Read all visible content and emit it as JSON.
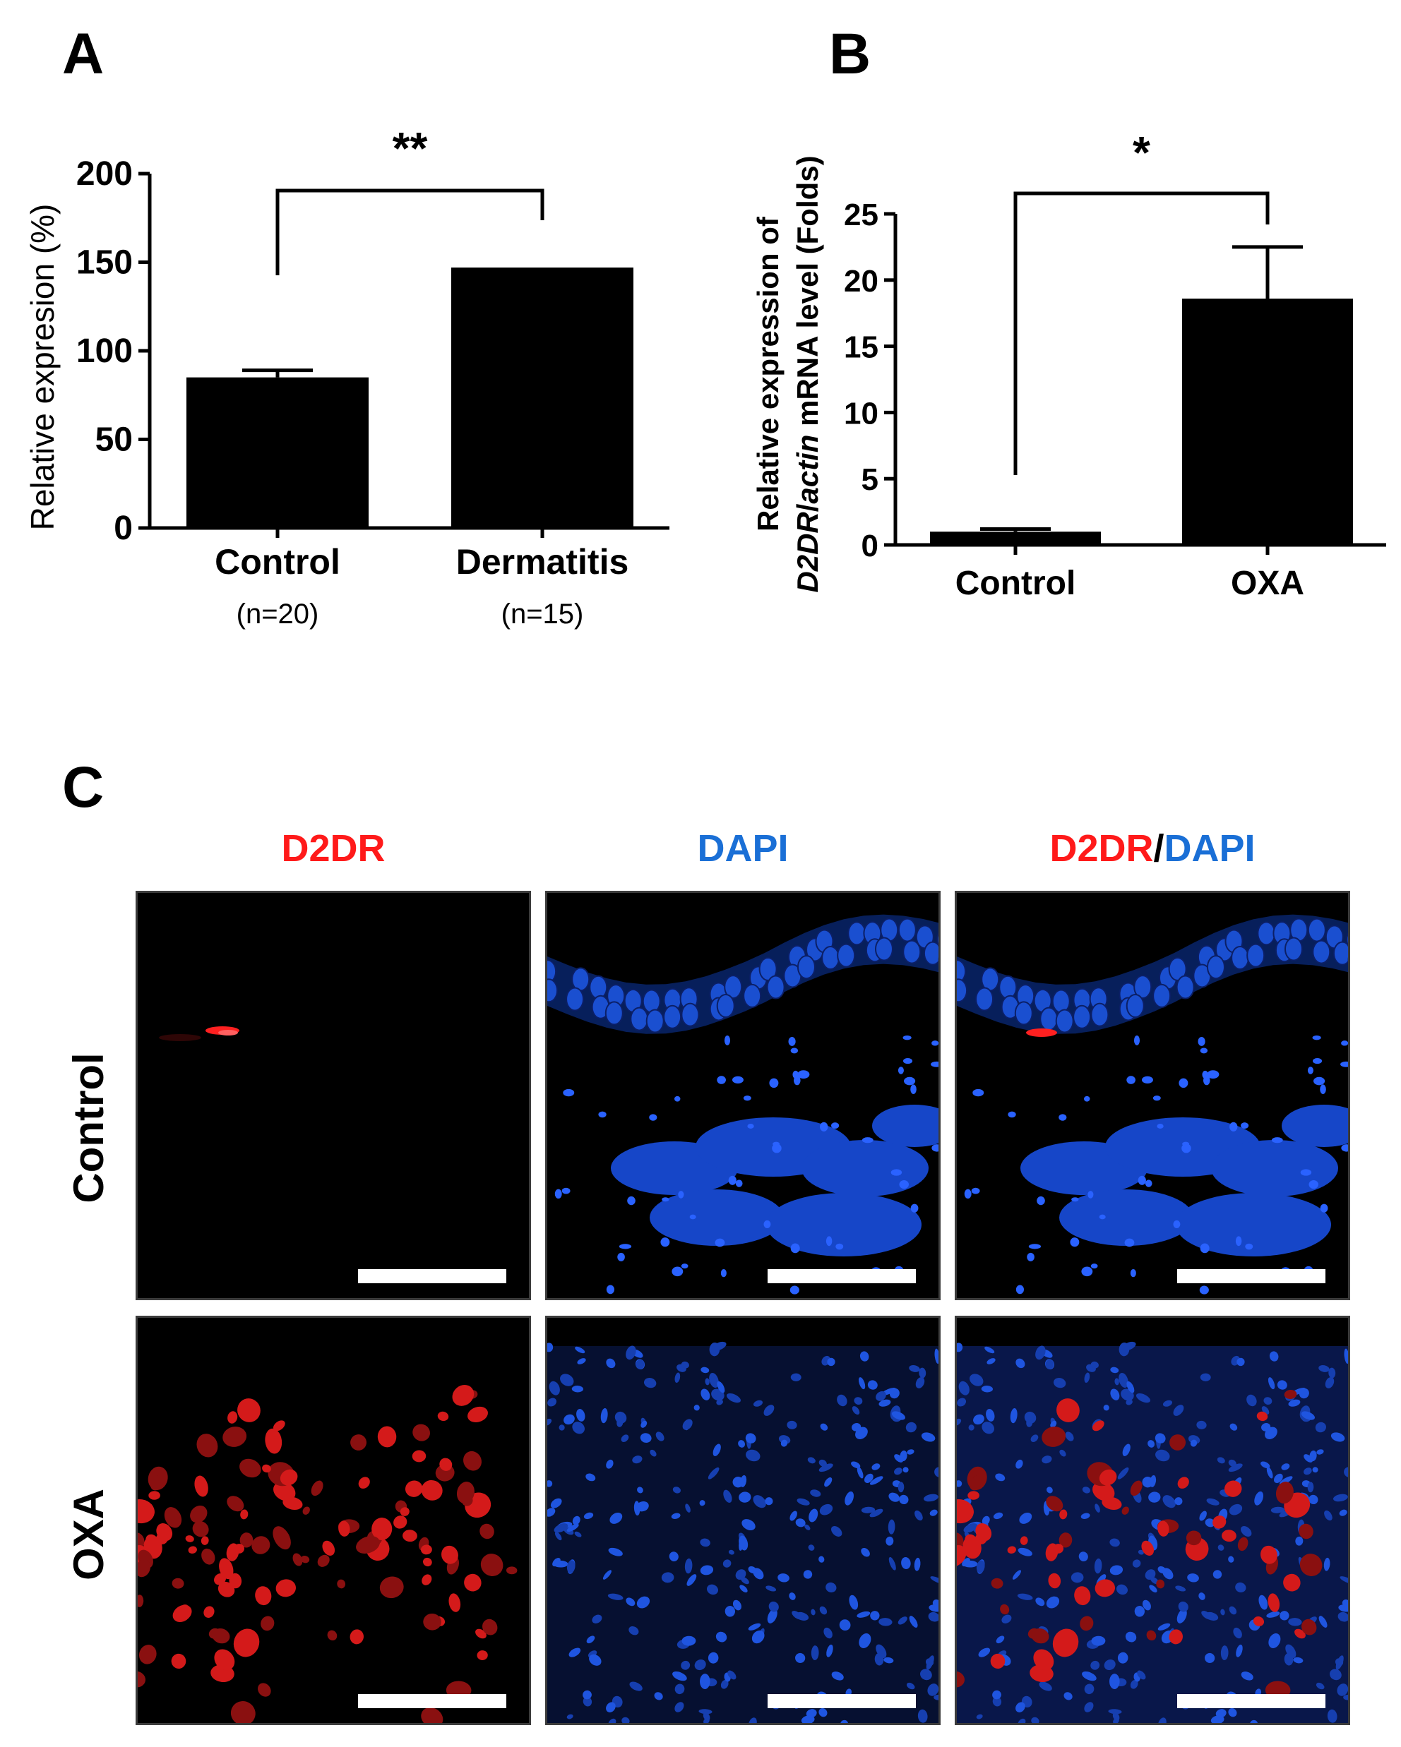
{
  "panels": {
    "a": {
      "letter": "A"
    },
    "b": {
      "letter": "B"
    },
    "c": {
      "letter": "C"
    }
  },
  "chart_data": [
    {
      "panel": "A",
      "type": "bar",
      "categories": [
        "Control",
        "Dermatitis"
      ],
      "sublabels": [
        "(n=20)",
        "(n=15)"
      ],
      "values": [
        85,
        147
      ],
      "errors": [
        4,
        0
      ],
      "ylabel": "Relative expresion (%)",
      "ylim": [
        0,
        200
      ],
      "yticks": [
        0,
        50,
        100,
        150,
        200
      ],
      "significance": "**",
      "bar_color": "#000000"
    },
    {
      "panel": "B",
      "type": "bar",
      "categories": [
        "Control",
        "OXA"
      ],
      "values": [
        1.0,
        18.6
      ],
      "errors": [
        0.2,
        3.9
      ],
      "ylabel_line1": "Relative expression of",
      "ylabel_gene": "D2DR",
      "ylabel_sep": "/",
      "ylabel_ref": "actin",
      "ylabel_rest": " mRNA level (Folds)",
      "ylim": [
        0,
        25
      ],
      "yticks": [
        0,
        5,
        10,
        15,
        20,
        25
      ],
      "significance": "*",
      "bar_color": "#000000"
    }
  ],
  "panel_c": {
    "columns": [
      "D2DR",
      "DAPI"
    ],
    "merge_part1": "D2DR",
    "merge_sep": "/",
    "merge_part2": "DAPI",
    "rows": [
      "Control",
      "OXA"
    ],
    "colors": {
      "d2dr": "#ff1a1a",
      "dapi": "#1a6fd6"
    }
  }
}
